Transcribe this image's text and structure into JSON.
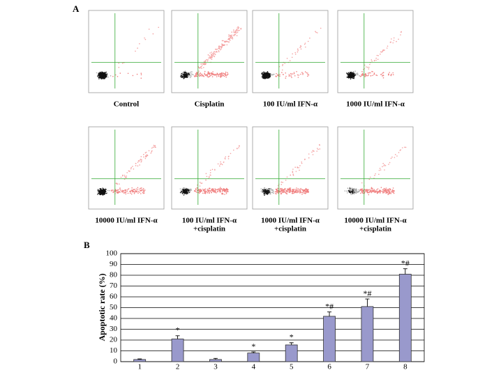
{
  "panel_a": {
    "label": "A",
    "plots": [
      {
        "label": [
          "Control"
        ]
      },
      {
        "label": [
          "Cisplatin"
        ]
      },
      {
        "label": [
          "100 IU/ml IFN-α"
        ]
      },
      {
        "label": [
          "1000 IU/ml IFN-α"
        ]
      },
      {
        "label": [
          "10000 IU/ml IFN-α"
        ]
      },
      {
        "label": [
          "100 IU/ml IFN-α",
          "+cisplatin"
        ]
      },
      {
        "label": [
          "1000 IU/ml IFN-α",
          "+cisplatin"
        ]
      },
      {
        "label": [
          "10000 IU/ml IFN-α",
          "+cisplatin"
        ]
      }
    ]
  },
  "chart_data": {
    "type": "bar",
    "panel_label": "B",
    "y_label": "Apoptotic rate (%)",
    "categories": [
      "1",
      "2",
      "3",
      "4",
      "5",
      "6",
      "7",
      "8"
    ],
    "values": [
      2,
      21,
      2,
      8,
      15.5,
      42,
      51,
      81
    ],
    "errors": [
      0.5,
      3,
      1,
      1,
      2,
      4,
      7,
      5
    ],
    "annotations": [
      null,
      "*",
      null,
      "*",
      "*",
      "*#",
      "*#",
      "*#"
    ],
    "color": "#9999cc",
    "ylim": [
      0,
      100
    ],
    "yticks": [
      0,
      10,
      20,
      30,
      40,
      50,
      60,
      70,
      80,
      90,
      100
    ],
    "grid": true
  }
}
